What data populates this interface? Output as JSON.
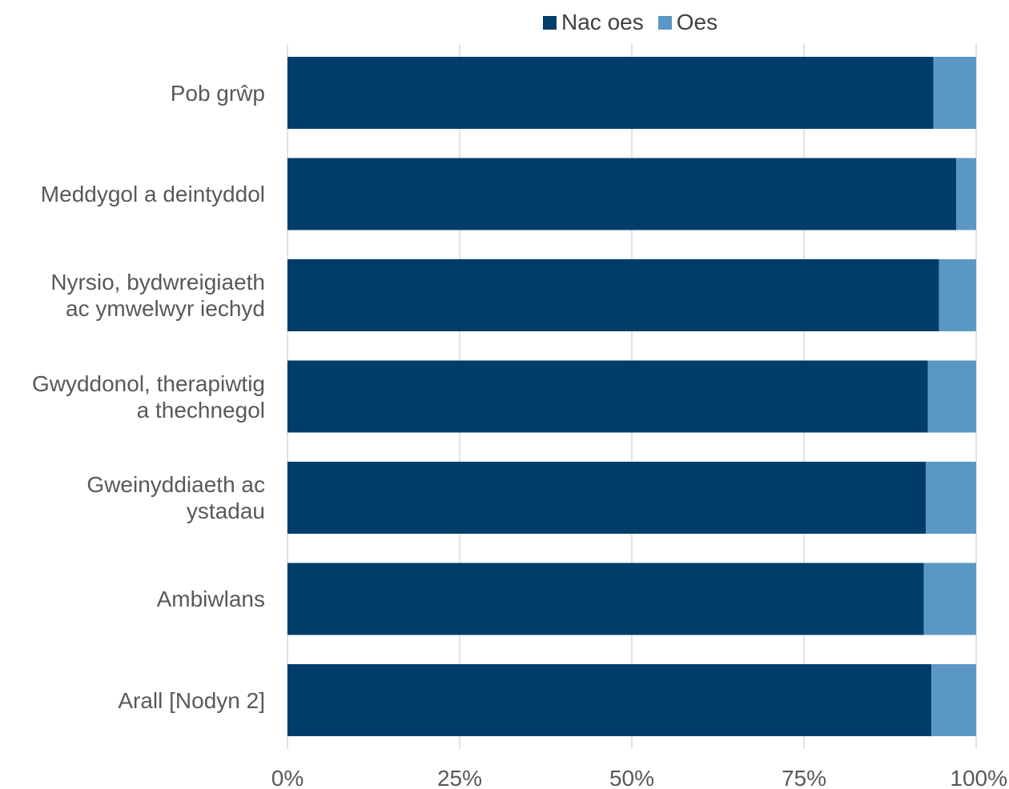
{
  "chart_data": {
    "type": "bar",
    "orientation": "horizontal",
    "stacked": true,
    "percent": true,
    "categories": [
      "Pob grŵp",
      "Meddygol a deintyddol",
      "Nyrsio, bydwreigiaeth ac ymwelwyr iechyd",
      "Gwyddonol, therapiwtig a thechnegol",
      "Gweinyddiaeth ac ystadau",
      "Ambiwlans",
      "Arall [Nodyn 2]"
    ],
    "category_lines": [
      [
        "Pob grŵp"
      ],
      [
        "Meddygol a deintyddol"
      ],
      [
        "Nyrsio, bydwreigiaeth",
        "ac ymwelwyr iechyd"
      ],
      [
        "Gwyddonol, therapiwtig",
        "a thechnegol"
      ],
      [
        "Gweinyddiaeth ac",
        "ystadau"
      ],
      [
        "Ambiwlans"
      ],
      [
        "Arall [Nodyn 2]"
      ]
    ],
    "series": [
      {
        "name": "Nac oes",
        "color": "#003d6b",
        "values": [
          93.8,
          97.1,
          94.6,
          93.0,
          92.7,
          92.4,
          93.5
        ]
      },
      {
        "name": "Oes",
        "color": "#5b97c4",
        "values": [
          6.2,
          2.9,
          5.4,
          7.0,
          7.3,
          7.6,
          6.5
        ]
      }
    ],
    "xlim": [
      0,
      100
    ],
    "xticks": [
      "0%",
      "25%",
      "50%",
      "75%",
      "100%"
    ],
    "grid": true,
    "legend_position": "top"
  }
}
